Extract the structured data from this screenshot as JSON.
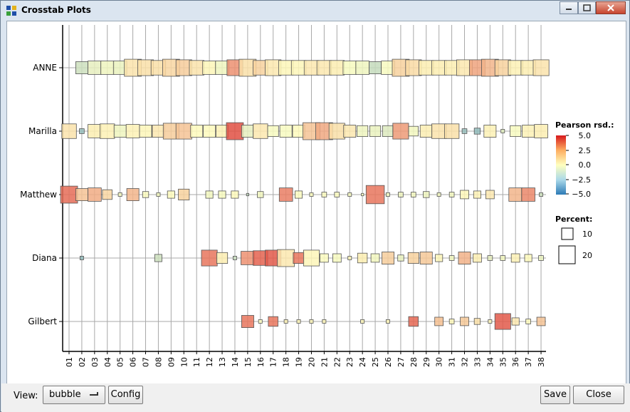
{
  "window": {
    "title": "Crosstab Plots"
  },
  "toolbar": {
    "view_label": "View:",
    "view_value": "bubble",
    "config_label": "Config",
    "save_label": "Save",
    "close_label": "Close"
  },
  "legend": {
    "color_title": "Pearson rsd.:",
    "color_ticks": [
      "5.0",
      "2.5",
      "0.0",
      "−2.5",
      "−5.0"
    ],
    "size_title": "Percent:",
    "size_ticks": [
      "10",
      "20"
    ]
  },
  "colors": {
    "neg": "#2c7bb6",
    "neutral": "#ffffbf",
    "pos": "#d7191c"
  },
  "chart_data": {
    "type": "bubble",
    "rows": [
      "ANNE",
      "Marilla",
      "Matthew",
      "Diana",
      "Gilbert"
    ],
    "columns": [
      "01",
      "02",
      "03",
      "04",
      "05",
      "06",
      "07",
      "08",
      "09",
      "10",
      "11",
      "12",
      "13",
      "14",
      "15",
      "16",
      "17",
      "18",
      "19",
      "20",
      "21",
      "22",
      "23",
      "24",
      "25",
      "26",
      "27",
      "28",
      "29",
      "30",
      "31",
      "32",
      "33",
      "34",
      "35",
      "36",
      "37",
      "38"
    ],
    "size_legend": [
      10,
      20
    ],
    "color_range": [
      -5,
      5
    ],
    "percent": [
      [
        0,
        10,
        11,
        11,
        11,
        14,
        13,
        12,
        14,
        13,
        12,
        11,
        11,
        13,
        14,
        12,
        13,
        12,
        12,
        12,
        12,
        12,
        11,
        11,
        10,
        11,
        14,
        13,
        12,
        12,
        12,
        13,
        13,
        14,
        13,
        12,
        12,
        13
      ],
      [
        12,
        4,
        11,
        12,
        10,
        11,
        10,
        10,
        13,
        13,
        10,
        10,
        10,
        14,
        10,
        12,
        9,
        10,
        10,
        14,
        14,
        13,
        10,
        9,
        9,
        9,
        13,
        8,
        10,
        12,
        12,
        4,
        5,
        10,
        3,
        9,
        10,
        11
      ],
      [
        14,
        10,
        11,
        8,
        3,
        10,
        5,
        3,
        6,
        9,
        0,
        6,
        6,
        6,
        2,
        5,
        0,
        11,
        6,
        3,
        4,
        4,
        3,
        2,
        15,
        3,
        4,
        4,
        5,
        3,
        4,
        7,
        6,
        7,
        0,
        11,
        11,
        3
      ],
      [
        0,
        3,
        0,
        0,
        0,
        0,
        0,
        6,
        0,
        0,
        0,
        13,
        9,
        3,
        11,
        12,
        13,
        14,
        9,
        13,
        7,
        7,
        3,
        8,
        7,
        10,
        5,
        9,
        10,
        6,
        4,
        10,
        7,
        4,
        4,
        7,
        6,
        4
      ],
      [
        0,
        0,
        0,
        0,
        0,
        0,
        0,
        0,
        0,
        0,
        0,
        0,
        0,
        0,
        10,
        3,
        8,
        3,
        3,
        3,
        3,
        0,
        0,
        3,
        0,
        3,
        0,
        8,
        0,
        7,
        4,
        7,
        5,
        3,
        13,
        6,
        4,
        7
      ]
    ],
    "residual": [
      [
        0,
        -1.2,
        -0.6,
        -0.4,
        -0.5,
        0.6,
        0.7,
        0.7,
        0.9,
        1.1,
        0.6,
        0.2,
        -0.4,
        2.4,
        0.7,
        1.0,
        0.5,
        0.2,
        0.2,
        0.5,
        0.5,
        0.4,
        -0.2,
        -0.4,
        -1.4,
        -0.2,
        1.0,
        0.8,
        0.4,
        0.4,
        0.4,
        0.5,
        2.0,
        1.6,
        1.0,
        0.3,
        0.4,
        0.6
      ],
      [
        0.6,
        -2.5,
        0.4,
        0.3,
        -0.4,
        0.3,
        0.2,
        0.5,
        1.1,
        1.3,
        0.1,
        0.1,
        0.3,
        3.8,
        -0.6,
        0.5,
        -0.2,
        -0.2,
        0.1,
        1.3,
        1.9,
        0.7,
        0.5,
        -0.4,
        -0.5,
        -0.8,
        2.2,
        -0.3,
        0.4,
        0.6,
        0.7,
        -2.5,
        -2.6,
        0.3,
        -0.7,
        -0.2,
        0.3,
        0.4
      ],
      [
        3.2,
        1.3,
        1.8,
        0.9,
        -0.2,
        1.6,
        -0.1,
        -0.3,
        0.1,
        1.0,
        0,
        -0.3,
        -0.2,
        0.1,
        -1.5,
        -0.3,
        0,
        2.8,
        -0.1,
        0,
        -0.1,
        -0.1,
        -0.2,
        0,
        3.0,
        -0.3,
        -0.4,
        -0.3,
        -0.4,
        -0.3,
        -0.3,
        0.2,
        0.3,
        0.5,
        0,
        1.6,
        2.6,
        -1.2
      ],
      [
        0,
        -2.6,
        0,
        0,
        0,
        0,
        0,
        -1.2,
        0,
        0,
        0,
        3.0,
        0.4,
        -1.3,
        2.4,
        3.4,
        3.6,
        0.5,
        3.0,
        0.2,
        -0.1,
        -0.2,
        0.2,
        0.4,
        -0.3,
        1.1,
        -0.5,
        1.0,
        1.2,
        0.2,
        -0.3,
        1.7,
        0.4,
        -0.6,
        -0.3,
        0.3,
        0.1,
        -0.5
      ],
      [
        0,
        0,
        0,
        0,
        0,
        0,
        0,
        0,
        0,
        0,
        0,
        0,
        0,
        0,
        3.0,
        0,
        3.0,
        0.3,
        0.2,
        0.2,
        0.2,
        0,
        0,
        0.2,
        0,
        0.2,
        0,
        3.3,
        0,
        1.4,
        0.2,
        1.2,
        0.7,
        0.2,
        3.6,
        0.5,
        0.1,
        1.3
      ]
    ]
  }
}
